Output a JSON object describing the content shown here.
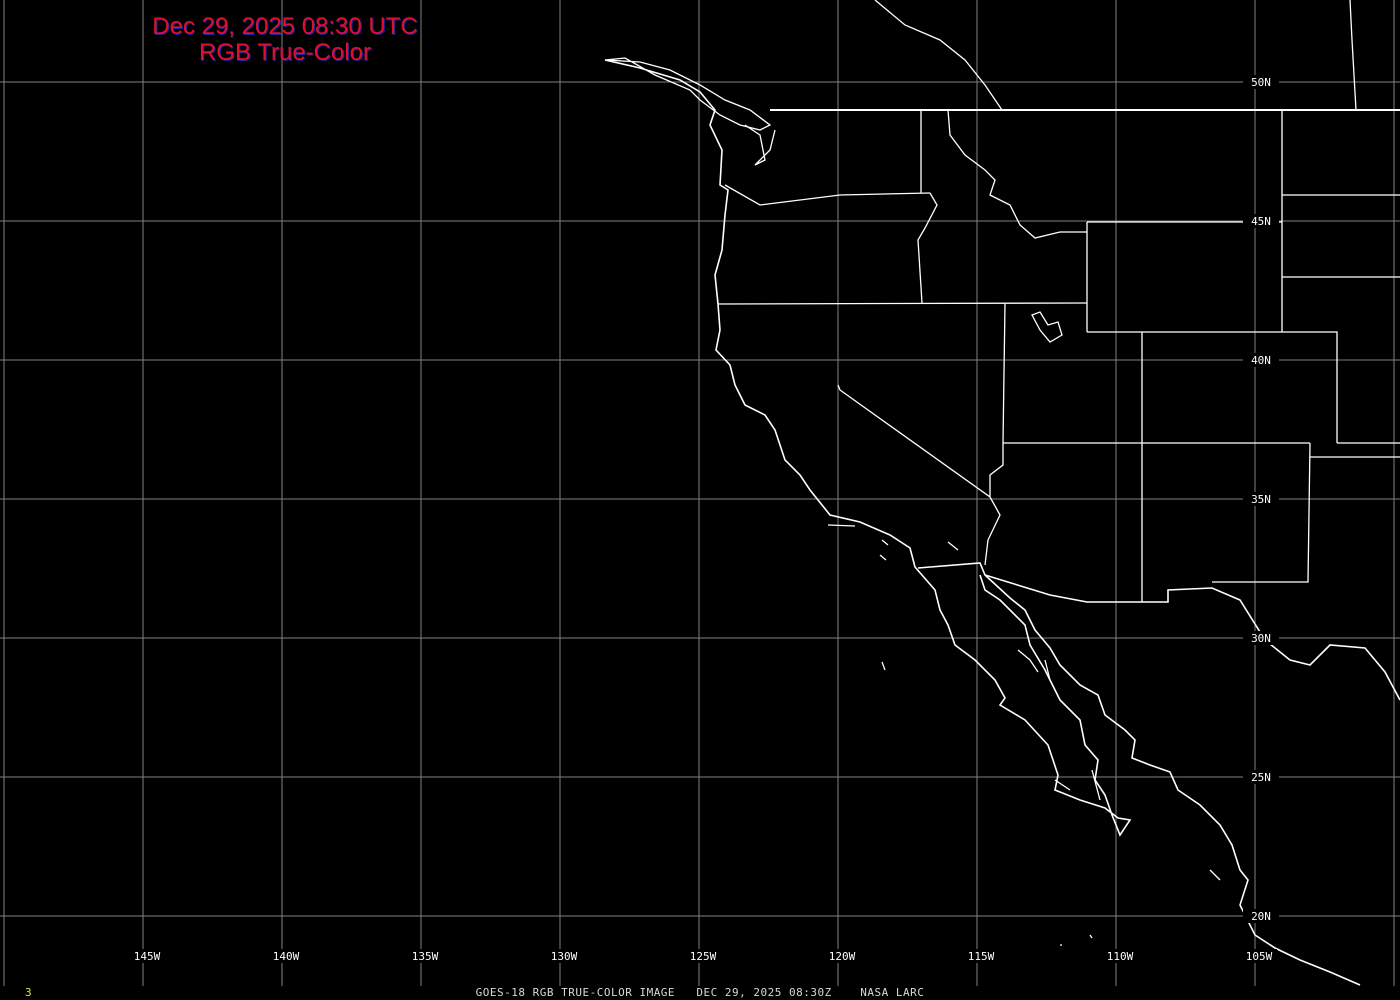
{
  "title": {
    "line1": "Dec 29, 2025 08:30 UTC",
    "line2": "RGB True-Color"
  },
  "footer": {
    "caption": "GOES-18 RGB TRUE-COLOR IMAGE   DEC 29, 2025 08:30Z    NASA LARC",
    "frame_number": "3"
  },
  "grid": {
    "longitudes": [
      "145W",
      "140W",
      "135W",
      "130W",
      "125W",
      "120W",
      "115W",
      "110W",
      "105W"
    ],
    "latitudes": [
      "50N",
      "45N",
      "40N",
      "35N",
      "30N",
      "25N",
      "20N"
    ]
  },
  "colors": {
    "background": "#000000",
    "grid": "#808080",
    "boundaries": "#ffffff",
    "title": "#e0102a",
    "frame_number": "#e6e05a"
  }
}
